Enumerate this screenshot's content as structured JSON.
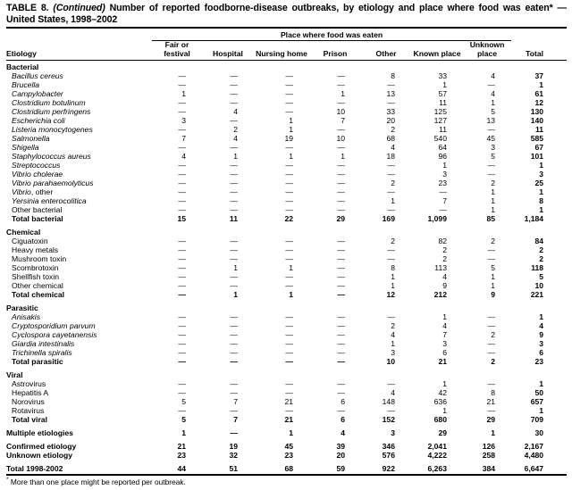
{
  "title": {
    "prefix": "TABLE 8.",
    "continued": "(Continued)",
    "rest": "Number of reported foodborne-disease outbreaks, by etiology and place where food was eaten* —",
    "line2": "United States, 1998–2002"
  },
  "header": {
    "spanner": "Place where food was eaten",
    "etiology": "Etiology",
    "columns": [
      "Fair or festival",
      "Hospital",
      "Nursing home",
      "Prison",
      "Other",
      "Known place",
      "Unknown place",
      "Total"
    ]
  },
  "sections": [
    {
      "label": "Bacterial",
      "rows": [
        {
          "name": "Bacillus cereus",
          "italic": true,
          "values": [
            "—",
            "—",
            "—",
            "—",
            "8",
            "33",
            "4",
            "37"
          ]
        },
        {
          "name": "Brucella",
          "italic": true,
          "values": [
            "—",
            "—",
            "—",
            "—",
            "—",
            "1",
            "—",
            "1"
          ]
        },
        {
          "name": "Campylobacter",
          "italic": true,
          "values": [
            "1",
            "—",
            "—",
            "1",
            "13",
            "57",
            "4",
            "61"
          ]
        },
        {
          "name": "Clostridium botulinum",
          "italic": true,
          "values": [
            "—",
            "—",
            "—",
            "—",
            "—",
            "11",
            "1",
            "12"
          ]
        },
        {
          "name": "Clostridium perfringens",
          "italic": true,
          "values": [
            "—",
            "4",
            "—",
            "10",
            "33",
            "125",
            "5",
            "130"
          ]
        },
        {
          "name": "Escherichia coli",
          "italic": true,
          "values": [
            "3",
            "—",
            "1",
            "7",
            "20",
            "127",
            "13",
            "140"
          ]
        },
        {
          "name": "Listeria monocytogenes",
          "italic": true,
          "values": [
            "—",
            "2",
            "1",
            "—",
            "2",
            "11",
            "—",
            "11"
          ]
        },
        {
          "name": "Salmonella",
          "italic": true,
          "values": [
            "7",
            "4",
            "19",
            "10",
            "68",
            "540",
            "45",
            "585"
          ]
        },
        {
          "name": "Shigella",
          "italic": true,
          "values": [
            "—",
            "—",
            "—",
            "—",
            "4",
            "64",
            "3",
            "67"
          ]
        },
        {
          "name": "Staphylococcus aureus",
          "italic": true,
          "values": [
            "4",
            "1",
            "1",
            "1",
            "18",
            "96",
            "5",
            "101"
          ]
        },
        {
          "name": "Streptococcus",
          "italic": true,
          "values": [
            "—",
            "—",
            "—",
            "—",
            "—",
            "1",
            "—",
            "1"
          ]
        },
        {
          "name": "Vibrio cholerae",
          "italic": true,
          "values": [
            "—",
            "—",
            "—",
            "—",
            "—",
            "3",
            "—",
            "3"
          ]
        },
        {
          "name": "Vibrio parahaemolyticus",
          "italic": true,
          "values": [
            "—",
            "—",
            "—",
            "—",
            "2",
            "23",
            "2",
            "25"
          ]
        },
        {
          "name": "Vibrio",
          "suffix": ", other",
          "italic": true,
          "values": [
            "—",
            "—",
            "—",
            "—",
            "—",
            "—",
            "1",
            "1"
          ]
        },
        {
          "name": "Yersinia enterocolitica",
          "italic": true,
          "values": [
            "—",
            "—",
            "—",
            "—",
            "1",
            "7",
            "1",
            "8"
          ]
        },
        {
          "name": "Other bacterial",
          "italic": false,
          "values": [
            "—",
            "—",
            "—",
            "—",
            "—",
            "—",
            "1",
            "1"
          ]
        }
      ],
      "total": {
        "name": "Total bacterial",
        "values": [
          "15",
          "11",
          "22",
          "29",
          "169",
          "1,099",
          "85",
          "1,184"
        ]
      }
    },
    {
      "label": "Chemical",
      "rows": [
        {
          "name": "Ciguatoxin",
          "italic": false,
          "values": [
            "—",
            "—",
            "—",
            "—",
            "2",
            "82",
            "2",
            "84"
          ]
        },
        {
          "name": "Heavy metals",
          "italic": false,
          "values": [
            "—",
            "—",
            "—",
            "—",
            "—",
            "2",
            "—",
            "2"
          ]
        },
        {
          "name": "Mushroom toxin",
          "italic": false,
          "values": [
            "—",
            "—",
            "—",
            "—",
            "—",
            "2",
            "—",
            "2"
          ]
        },
        {
          "name": "Scombrotoxin",
          "italic": false,
          "values": [
            "—",
            "1",
            "1",
            "—",
            "8",
            "113",
            "5",
            "118"
          ]
        },
        {
          "name": "Shellfish toxin",
          "italic": false,
          "values": [
            "—",
            "—",
            "—",
            "—",
            "1",
            "4",
            "1",
            "5"
          ]
        },
        {
          "name": "Other chemical",
          "italic": false,
          "values": [
            "—",
            "—",
            "—",
            "—",
            "1",
            "9",
            "1",
            "10"
          ]
        }
      ],
      "total": {
        "name": "Total chemical",
        "values": [
          "—",
          "1",
          "1",
          "—",
          "12",
          "212",
          "9",
          "221"
        ]
      }
    },
    {
      "label": "Parasitic",
      "rows": [
        {
          "name": "Anisakis",
          "italic": true,
          "values": [
            "—",
            "—",
            "—",
            "—",
            "—",
            "1",
            "—",
            "1"
          ]
        },
        {
          "name": "Cryptosporidium parvum",
          "italic": true,
          "values": [
            "—",
            "—",
            "—",
            "—",
            "2",
            "4",
            "—",
            "4"
          ]
        },
        {
          "name": "Cyclospora cayetanensis",
          "italic": true,
          "values": [
            "—",
            "—",
            "—",
            "—",
            "4",
            "7",
            "2",
            "9"
          ]
        },
        {
          "name": "Giardia intestinalis",
          "italic": true,
          "values": [
            "—",
            "—",
            "—",
            "—",
            "1",
            "3",
            "—",
            "3"
          ]
        },
        {
          "name": "Trichinella spiralis",
          "italic": true,
          "values": [
            "—",
            "—",
            "—",
            "—",
            "3",
            "6",
            "—",
            "6"
          ]
        }
      ],
      "total": {
        "name": "Total parasitic",
        "values": [
          "—",
          "—",
          "—",
          "—",
          "10",
          "21",
          "2",
          "23"
        ]
      }
    },
    {
      "label": "Viral",
      "rows": [
        {
          "name": "Astrovirus",
          "italic": false,
          "values": [
            "—",
            "—",
            "—",
            "—",
            "—",
            "1",
            "—",
            "1"
          ]
        },
        {
          "name": "Hepatitis A",
          "italic": false,
          "values": [
            "—",
            "—",
            "—",
            "—",
            "4",
            "42",
            "8",
            "50"
          ]
        },
        {
          "name": "Norovirus",
          "italic": false,
          "values": [
            "5",
            "7",
            "21",
            "6",
            "148",
            "636",
            "21",
            "657"
          ]
        },
        {
          "name": "Rotavirus",
          "italic": false,
          "values": [
            "—",
            "—",
            "—",
            "—",
            "—",
            "1",
            "—",
            "1"
          ]
        }
      ],
      "total": {
        "name": "Total viral",
        "values": [
          "5",
          "7",
          "21",
          "6",
          "152",
          "680",
          "29",
          "709"
        ]
      }
    }
  ],
  "summary_rows": [
    {
      "name": "Multiple etiologies",
      "gap": true,
      "values": [
        "1",
        "—",
        "1",
        "4",
        "3",
        "29",
        "1",
        "30"
      ]
    },
    {
      "name": "Confirmed etiology",
      "gap": true,
      "values": [
        "21",
        "19",
        "45",
        "39",
        "346",
        "2,041",
        "126",
        "2,167"
      ]
    },
    {
      "name": "Unknown etiology",
      "gap": false,
      "values": [
        "23",
        "32",
        "23",
        "20",
        "576",
        "4,222",
        "258",
        "4,480"
      ]
    },
    {
      "name": "Total 1998-2002",
      "gap": true,
      "values": [
        "44",
        "51",
        "68",
        "59",
        "922",
        "6,263",
        "384",
        "6,647"
      ]
    }
  ],
  "footnote": {
    "marker": "*",
    "text": "More than one place might be reported per outbreak."
  }
}
